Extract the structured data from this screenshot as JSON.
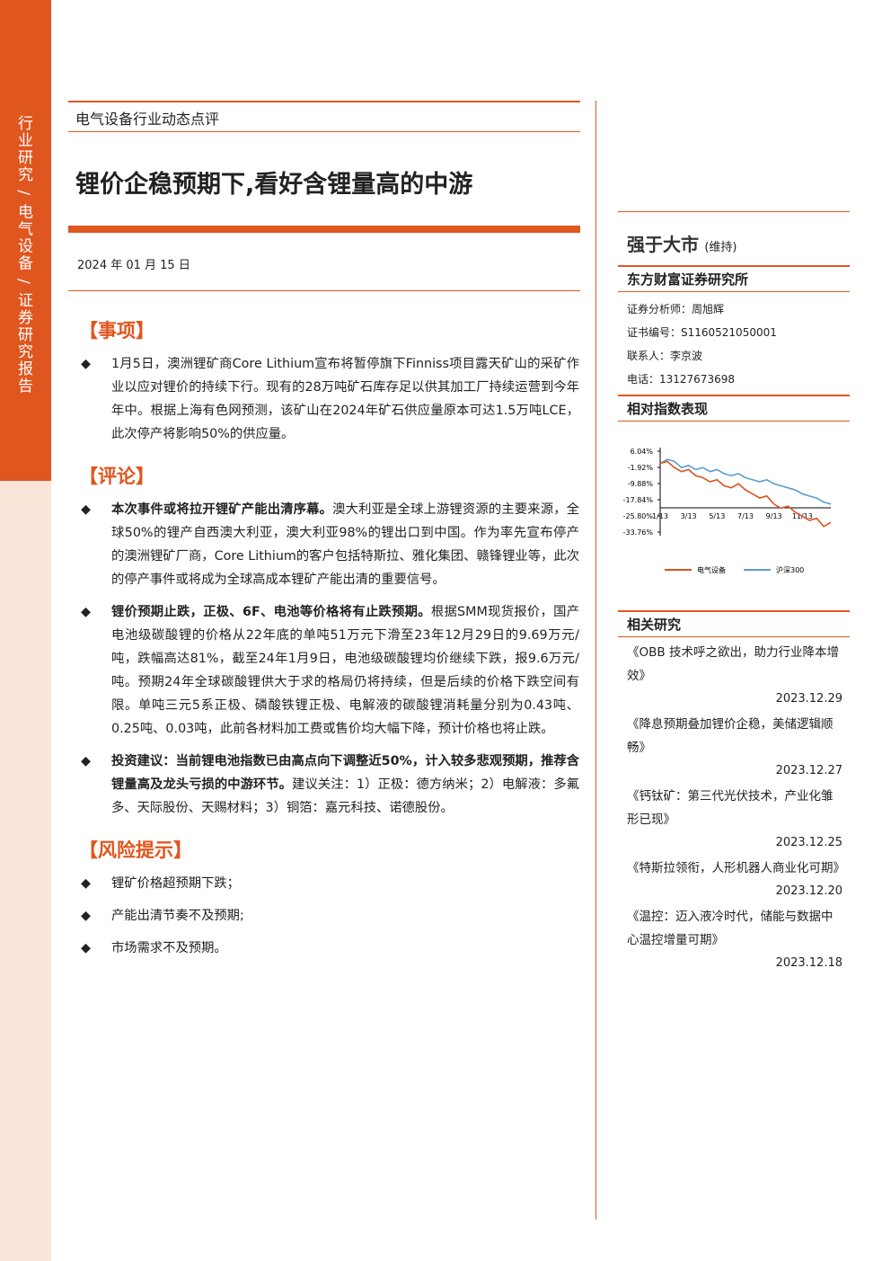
{
  "sidebar": "行业研究 / 电气设备 / 证券研究报告",
  "header": {
    "category": "电气设备行业动态点评",
    "title": "锂价企稳预期下,看好含锂量高的中游",
    "date": "2024 年 01 月 15 日"
  },
  "sections": [
    {
      "heading": "【事项】",
      "items": [
        {
          "text": "1月5日，澳洲锂矿商Core Lithium宣布将暂停旗下Finniss项目露天矿山的采矿作业以应对锂价的持续下行。现有的28万吨矿石库存足以供其加工厂持续运营到今年年中。根据上海有色网预测，该矿山在2024年矿石供应量原本可达1.5万吨LCE，此次停产将影响50%的供应量。"
        }
      ]
    },
    {
      "heading": "【评论】",
      "items": [
        {
          "lead": "本次事件或将拉开锂矿产能出清序幕。",
          "text": "澳大利亚是全球上游锂资源的主要来源，全球50%的锂产自西澳大利亚，澳大利亚98%的锂出口到中国。作为率先宣布停产的澳洲锂矿厂商，Core Lithium的客户包括特斯拉、雅化集团、赣锋锂业等，此次的停产事件或将成为全球高成本锂矿产能出清的重要信号。"
        },
        {
          "lead": "锂价预期止跌，正极、6F、电池等价格将有止跌预期。",
          "text": "根据SMM现货报价，国产电池级碳酸锂的价格从22年底的单吨51万元下滑至23年12月29日的9.69万元/吨，跌幅高达81%，截至24年1月9日，电池级碳酸锂均价继续下跌，报9.6万元/吨。预期24年全球碳酸锂供大于求的格局仍将持续，但是后续的价格下跌空间有限。单吨三元5系正极、磷酸铁锂正极、电解液的碳酸锂消耗量分别为0.43吨、0.25吨、0.03吨，此前各材料加工费或售价均大幅下降，预计价格也将止跌。"
        },
        {
          "lead": "投资建议：当前锂电池指数已由高点向下调整近50%，计入较多悲观预期，推荐含锂量高及龙头亏损的中游环节。",
          "text": "建议关注：1）正极：德方纳米；2）电解液：多氟多、天际股份、天赐材料；3）铜箔：嘉元科技、诺德股份。"
        }
      ]
    },
    {
      "heading": "【风险提示】",
      "items": [
        {
          "text": "锂矿价格超预期下跌；"
        },
        {
          "text": "产能出清节奏不及预期;"
        },
        {
          "text": "市场需求不及预期。"
        }
      ]
    }
  ],
  "rating": {
    "label": "强于大市",
    "note": "(维持)"
  },
  "firm": "东方财富证券研究所",
  "contacts": [
    "证券分析师：周旭辉",
    "证书编号：S1160521050001",
    "联系人：李京波",
    "电话：13127673698"
  ],
  "chart_title": "相对指数表现",
  "chart_data": {
    "type": "line",
    "categories": [
      "1/13",
      null,
      null,
      null,
      "3/13",
      null,
      null,
      null,
      "5/13",
      null,
      null,
      null,
      "7/13",
      null,
      null,
      null,
      "9/13",
      null,
      null,
      null,
      "11/13",
      null,
      null,
      null,
      null
    ],
    "series": [
      {
        "name": "电气设备",
        "color": "#d9541e",
        "values": [
          0,
          1,
          -2,
          -4,
          -3,
          -6,
          -7,
          -9,
          -8,
          -11,
          -12,
          -10,
          -13,
          -15,
          -17,
          -16,
          -20,
          -22,
          -21,
          -24,
          -26,
          -28,
          -27,
          -31,
          -29
        ]
      },
      {
        "name": "沪深300",
        "color": "#5b9bd5",
        "values": [
          0,
          2,
          1,
          -2,
          -1,
          -3,
          -2,
          -4,
          -3,
          -5,
          -6,
          -5,
          -7,
          -8,
          -9,
          -8,
          -10,
          -11,
          -12,
          -13,
          -15,
          -16,
          -17,
          -19,
          -20
        ]
      }
    ],
    "ylim": [
      -33.76,
      6.04
    ],
    "yticks": [
      {
        "value": 6.04,
        "label": "6.04%"
      },
      {
        "value": -1.92,
        "label": "-1.92%"
      },
      {
        "value": -9.88,
        "label": "-9.88%"
      },
      {
        "value": -17.84,
        "label": "-17.84%"
      },
      {
        "value": -25.8,
        "label": "-25.80%"
      },
      {
        "value": -33.76,
        "label": "-33.76%"
      }
    ]
  },
  "related": {
    "title": "相关研究",
    "items": [
      {
        "title": "《OBB 技术呼之欲出，助力行业降本增效》",
        "date": "2023.12.29"
      },
      {
        "title": "《降息预期叠加锂价企稳，美储逻辑顺畅》",
        "date": "2023.12.27"
      },
      {
        "title": "《钙钛矿：第三代光伏技术，产业化雏形已现》",
        "date": "2023.12.25"
      },
      {
        "title": "《特斯拉领衔，人形机器人商业化可期》",
        "date": "2023.12.20"
      },
      {
        "title": "《温控：迈入液冷时代，储能与数据中心温控增量可期》",
        "date": "2023.12.18"
      }
    ]
  }
}
